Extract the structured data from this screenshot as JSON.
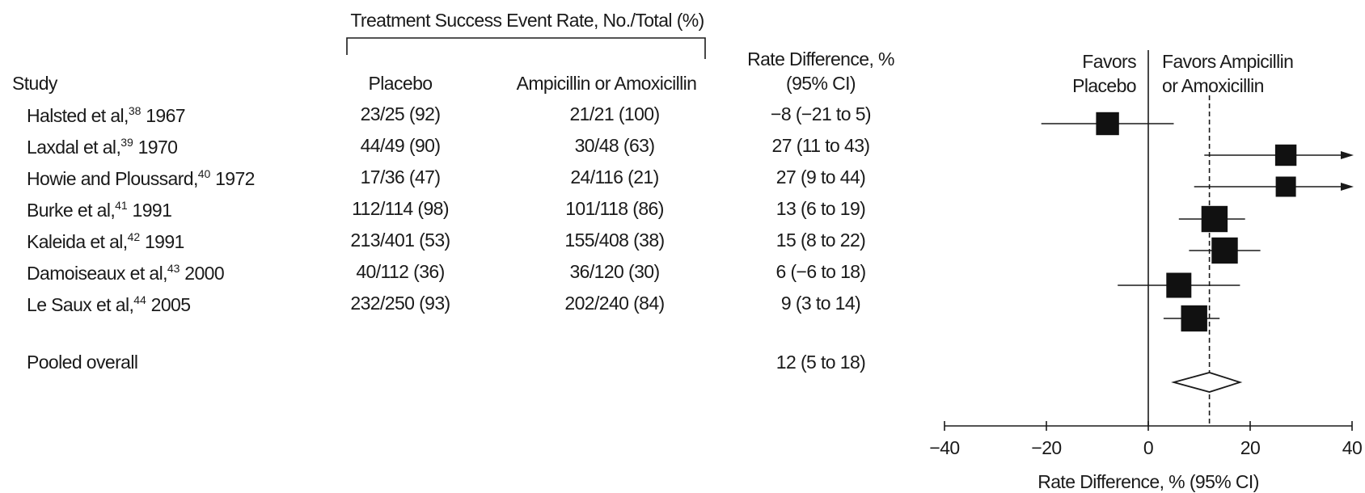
{
  "header": {
    "group_title": "Treatment Success Event Rate, No./Total (%)",
    "col_study": "Study",
    "col_placebo": "Placebo",
    "col_treatment": "Ampicillin or Amoxicillin",
    "col_rd_line1": "Rate Difference, %",
    "col_rd_line2": "(95% CI)"
  },
  "rows": [
    {
      "study": "Halsted et al,",
      "ref": "38",
      "year": "1967",
      "placebo": "23/25 (92)",
      "treatment": "21/21 (100)",
      "rd": "−8 (−21 to 5)"
    },
    {
      "study": "Laxdal et al,",
      "ref": "39",
      "year": "1970",
      "placebo": "44/49 (90)",
      "treatment": "30/48 (63)",
      "rd": "27 (11 to 43)"
    },
    {
      "study": "Howie and Ploussard,",
      "ref": "40",
      "year": "1972",
      "placebo": "17/36 (47)",
      "treatment": "24/116 (21)",
      "rd": "27 (9 to 44)"
    },
    {
      "study": "Burke et al,",
      "ref": "41",
      "year": "1991",
      "placebo": "112/114 (98)",
      "treatment": "101/118 (86)",
      "rd": "13 (6 to 19)"
    },
    {
      "study": "Kaleida et al,",
      "ref": "42",
      "year": "1991",
      "placebo": "213/401 (53)",
      "treatment": "155/408 (38)",
      "rd": "15 (8 to 22)"
    },
    {
      "study": "Damoiseaux et al,",
      "ref": "43",
      "year": "2000",
      "placebo": "40/112 (36)",
      "treatment": "36/120 (30)",
      "rd": "6 (−6 to 18)"
    },
    {
      "study": "Le Saux et al,",
      "ref": "44",
      "year": "2005",
      "placebo": "232/250 (93)",
      "treatment": "202/240 (84)",
      "rd": "9 (3 to 14)"
    }
  ],
  "pooled": {
    "label": "Pooled overall",
    "rd": "12 (5 to 18)"
  },
  "chart_data": {
    "type": "forest",
    "xlabel": "Rate Difference, % (95% CI)",
    "xlim": [
      -40,
      40
    ],
    "ticks": [
      -40,
      -20,
      0,
      20,
      40
    ],
    "tick_labels": [
      "−40",
      "−20",
      "0",
      "20",
      "40"
    ],
    "favors_left": [
      "Favors",
      "Placebo"
    ],
    "favors_right": [
      "Favors Ampicillin",
      "or Amoxicillin"
    ],
    "reference_line": 0,
    "pooled_reference_line": 12,
    "studies": [
      {
        "est": -8,
        "lo": -21,
        "hi": 5,
        "weight": 0.72,
        "clipped_hi": false
      },
      {
        "est": 27,
        "lo": 11,
        "hi": 43,
        "weight": 0.62,
        "clipped_hi": true
      },
      {
        "est": 27,
        "lo": 9,
        "hi": 44,
        "weight": 0.55,
        "clipped_hi": true
      },
      {
        "est": 13,
        "lo": 6,
        "hi": 19,
        "weight": 0.92,
        "clipped_hi": false
      },
      {
        "est": 15,
        "lo": 8,
        "hi": 22,
        "weight": 0.92,
        "clipped_hi": false
      },
      {
        "est": 6,
        "lo": -6,
        "hi": 18,
        "weight": 0.85,
        "clipped_hi": false
      },
      {
        "est": 9,
        "lo": 3,
        "hi": 14,
        "weight": 0.92,
        "clipped_hi": false
      }
    ],
    "pooled": {
      "est": 12,
      "lo": 5,
      "hi": 18
    }
  }
}
